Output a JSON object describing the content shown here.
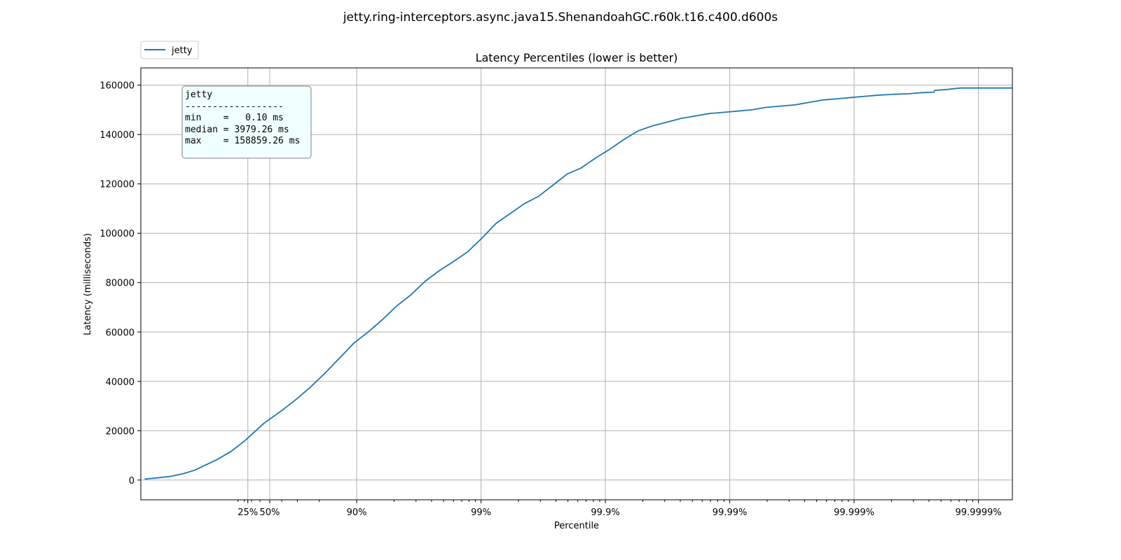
{
  "chart_data": {
    "type": "line",
    "suptitle": "jetty.ring-interceptors.async.java15.ShenandoahGC.r60k.t16.c400.d600s",
    "title": "Latency Percentiles (lower is better)",
    "xlabel": "Percentile",
    "ylabel": "Latency (milliseconds)",
    "x_scale": "log-inverse-percentile",
    "x_ticks": [
      {
        "percentile": 25,
        "label": "25%"
      },
      {
        "percentile": 50,
        "label": "50%"
      },
      {
        "percentile": 90,
        "label": "90%"
      },
      {
        "percentile": 99,
        "label": "99%"
      },
      {
        "percentile": 99.9,
        "label": "99.9%"
      },
      {
        "percentile": 99.99,
        "label": "99.99%"
      },
      {
        "percentile": 99.999,
        "label": "99.999%"
      },
      {
        "percentile": 99.9999,
        "label": "99.9999%"
      }
    ],
    "y_ticks": [
      0,
      20000,
      40000,
      60000,
      80000,
      100000,
      120000,
      140000,
      160000
    ],
    "ylim": [
      -8000,
      167000
    ],
    "grid": true,
    "legend": {
      "position": "top-left",
      "entries": [
        "jetty"
      ]
    },
    "annotation": {
      "lines": [
        "jetty",
        "------------------",
        "min    =   0.10 ms",
        "median = 3979.26 ms",
        "max    = 158859.26 ms"
      ]
    },
    "colors": {
      "series": "#1f77b4",
      "annotation_bg": "#f0ffff",
      "annotation_border": "#808080",
      "grid": "#b0b0b0"
    },
    "series": [
      {
        "name": "jetty",
        "points": [
          [
            -1.6,
            400
          ],
          [
            0,
            1000
          ],
          [
            1.15,
            1500
          ],
          [
            2.5,
            2600
          ],
          [
            3.7,
            4000
          ],
          [
            4.5,
            5500
          ],
          [
            6,
            8200
          ],
          [
            7.5,
            11500
          ],
          [
            9,
            16000
          ],
          [
            11,
            23000
          ],
          [
            13,
            28500
          ],
          [
            14.5,
            33000
          ],
          [
            16,
            38000
          ],
          [
            17.5,
            43500
          ],
          [
            19,
            49500
          ],
          [
            20.5,
            55500
          ],
          [
            22,
            60000
          ],
          [
            23.5,
            65000
          ],
          [
            25,
            70500
          ],
          [
            26.5,
            75000
          ],
          [
            28,
            80500
          ],
          [
            29.5,
            84800
          ],
          [
            31,
            88500
          ],
          [
            32.5,
            92500
          ],
          [
            34,
            98000
          ],
          [
            35.5,
            104000
          ],
          [
            37,
            108000
          ],
          [
            38.5,
            112000
          ],
          [
            40,
            115000
          ],
          [
            41.5,
            119500
          ],
          [
            43,
            124000
          ],
          [
            44.5,
            126500
          ],
          [
            46,
            130500
          ],
          [
            47.5,
            134000
          ],
          [
            49,
            138000
          ],
          [
            50.5,
            141500
          ],
          [
            52,
            143500
          ],
          [
            53.5,
            145000
          ],
          [
            55,
            146500
          ],
          [
            56.5,
            147500
          ],
          [
            58,
            148500
          ],
          [
            59.5,
            149000
          ],
          [
            61,
            149500
          ],
          [
            62.5,
            150000
          ],
          [
            64,
            151000
          ],
          [
            65.5,
            151500
          ],
          [
            67,
            152000
          ],
          [
            68.5,
            153000
          ],
          [
            70,
            154000
          ],
          [
            71.5,
            154500
          ],
          [
            73,
            155000
          ],
          [
            74.5,
            155500
          ],
          [
            76,
            156000
          ],
          [
            77.5,
            156300
          ],
          [
            79,
            156500
          ],
          [
            80.5,
            157000
          ],
          [
            81.7,
            157200
          ],
          [
            81.8,
            157900
          ],
          [
            83.2,
            158300
          ],
          [
            84.5,
            158859
          ],
          [
            90,
            158859
          ]
        ]
      }
    ]
  }
}
